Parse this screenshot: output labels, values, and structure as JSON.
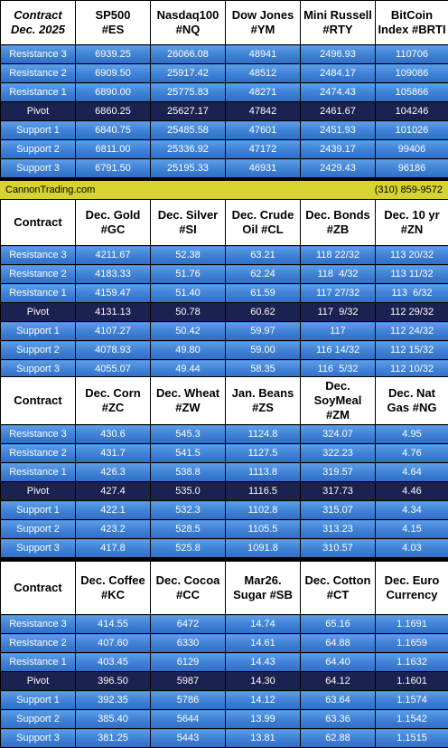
{
  "row_labels": [
    "Resistance 3",
    "Resistance 2",
    "Resistance 1",
    "Pivot",
    "Support 1",
    "Support 2",
    "Support 3"
  ],
  "banner": {
    "site": "CannonTrading.com",
    "phone": "(310) 859-9572"
  },
  "blocks": [
    {
      "corner": [
        "Contract",
        "Dec. 2025"
      ],
      "headers": [
        [
          "SP500",
          "#ES"
        ],
        [
          "Nasdaq100",
          "#NQ"
        ],
        [
          "Dow Jones",
          "#YM"
        ],
        [
          "Mini Russell",
          "#RTY"
        ],
        [
          "BitCoin",
          "Index #BRTI"
        ]
      ],
      "rows": [
        [
          "6939.25",
          "26066.08",
          "48941",
          "2496.93",
          "110706"
        ],
        [
          "6909.50",
          "25917.42",
          "48512",
          "2484.17",
          "109086"
        ],
        [
          "6890.00",
          "25775.83",
          "48271",
          "2474.43",
          "105866"
        ],
        [
          "6860.25",
          "25627.17",
          "47842",
          "2461.67",
          "104246"
        ],
        [
          "6840.75",
          "25485.58",
          "47601",
          "2451.93",
          "101026"
        ],
        [
          "6811.00",
          "25336.92",
          "47172",
          "2439.17",
          "99406"
        ],
        [
          "6791.50",
          "25195.33",
          "46931",
          "2429.43",
          "96186"
        ]
      ]
    },
    {
      "corner": [
        "Contract"
      ],
      "headers": [
        [
          "Dec. Gold",
          "#GC"
        ],
        [
          "Dec. Silver",
          "#SI"
        ],
        [
          "Dec. Crude",
          "Oil #CL"
        ],
        [
          "Dec. Bonds",
          "#ZB"
        ],
        [
          "Dec. 10 yr",
          "#ZN"
        ]
      ],
      "rows": [
        [
          "4211.67",
          "52.38",
          "63.21",
          "118 22/32",
          "113 20/32"
        ],
        [
          "4183.33",
          "51.76",
          "62.24",
          "118  4/32",
          "113 11/32"
        ],
        [
          "4159.47",
          "51.40",
          "61.59",
          "117 27/32",
          "113  6/32"
        ],
        [
          "4131.13",
          "50.78",
          "60.62",
          "117  9/32",
          "112 29/32"
        ],
        [
          "4107.27",
          "50.42",
          "59.97",
          "117",
          "112 24/32"
        ],
        [
          "4078.93",
          "49.80",
          "59.00",
          "116 14/32",
          "112 15/32"
        ],
        [
          "4055.07",
          "49.44",
          "58.35",
          "116  5/32",
          "112 10/32"
        ]
      ]
    },
    {
      "corner": [
        "Contract"
      ],
      "headers": [
        [
          "Dec. Corn",
          "#ZC"
        ],
        [
          "Dec.  Wheat",
          "#ZW"
        ],
        [
          "Jan. Beans",
          "#ZS"
        ],
        [
          "Dec.",
          "SoyMeal",
          "#ZM"
        ],
        [
          "Dec. Nat",
          "Gas #NG"
        ]
      ],
      "rows": [
        [
          "430.6",
          "545.3",
          "1124.8",
          "324.07",
          "4.95"
        ],
        [
          "431.7",
          "541.5",
          "1127.5",
          "322.23",
          "4.76"
        ],
        [
          "426.3",
          "538.8",
          "1113.8",
          "319.57",
          "4.64"
        ],
        [
          "427.4",
          "535.0",
          "1116.5",
          "317.73",
          "4.46"
        ],
        [
          "422.1",
          "532.3",
          "1102.8",
          "315.07",
          "4.34"
        ],
        [
          "423.2",
          "528.5",
          "1105.5",
          "313.23",
          "4.15"
        ],
        [
          "417.8",
          "525.8",
          "1091.8",
          "310.57",
          "4.03"
        ]
      ]
    },
    {
      "corner": [
        "Contract"
      ],
      "headers": [
        [
          "Dec. Coffee",
          "#KC"
        ],
        [
          "Dec. Cocoa",
          "#CC"
        ],
        [
          "Mar26.",
          "Sugar #SB"
        ],
        [
          "Dec. Cotton",
          "#CT"
        ],
        [
          "Dec. Euro",
          "Currency"
        ]
      ],
      "rows": [
        [
          "414.55",
          "6472",
          "14.74",
          "65.16",
          "1.1691"
        ],
        [
          "407.60",
          "6330",
          "14.61",
          "64.88",
          "1.1659"
        ],
        [
          "403.45",
          "6129",
          "14.43",
          "64.40",
          "1.1632"
        ],
        [
          "396.50",
          "5987",
          "14.30",
          "64.12",
          "1.1601"
        ],
        [
          "392.35",
          "5786",
          "14.12",
          "63.64",
          "1.1574"
        ],
        [
          "385.40",
          "5644",
          "13.99",
          "63.36",
          "1.1542"
        ],
        [
          "381.25",
          "5443",
          "13.81",
          "62.88",
          "1.1515"
        ]
      ]
    }
  ]
}
